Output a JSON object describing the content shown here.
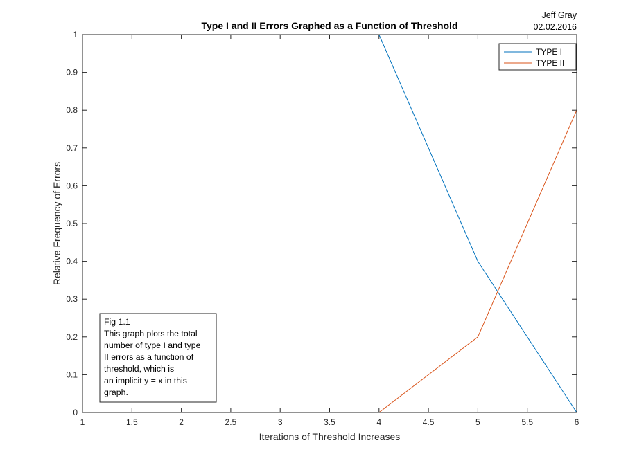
{
  "chart_data": {
    "type": "line",
    "title": "Type I and II Errors Graphed as a Function of Threshold",
    "xlabel": "Iterations of Threshold Increases",
    "ylabel": "Relative Frequency of Errors",
    "xlim": [
      1,
      6
    ],
    "ylim": [
      0,
      1
    ],
    "x": [
      1,
      2,
      3,
      4,
      5,
      6
    ],
    "xticks": [
      "1",
      "1.5",
      "2",
      "2.5",
      "3",
      "3.5",
      "4",
      "4.5",
      "5",
      "5.5",
      "6"
    ],
    "yticks": [
      "0",
      "0.1",
      "0.2",
      "0.3",
      "0.4",
      "0.5",
      "0.6",
      "0.7",
      "0.8",
      "0.9",
      "1"
    ],
    "series": [
      {
        "name": "TYPE I",
        "values": [
          1,
          1,
          1,
          1,
          0.4,
          0
        ],
        "color": "#0072BD"
      },
      {
        "name": "TYPE II",
        "values": [
          0,
          0,
          0,
          0,
          0.2,
          0.8
        ],
        "color": "#D95319"
      }
    ],
    "legend_position": "top-right",
    "grid": false
  },
  "corner_text": [
    "Jeff Gray",
    "02.02.2016"
  ],
  "annotation": {
    "lines": [
      "Fig 1.1",
      "This graph plots the total",
      "number of type I and type",
      "II errors as a function of",
      "threshold, which is",
      "an implicit y = x in this",
      "graph."
    ]
  }
}
